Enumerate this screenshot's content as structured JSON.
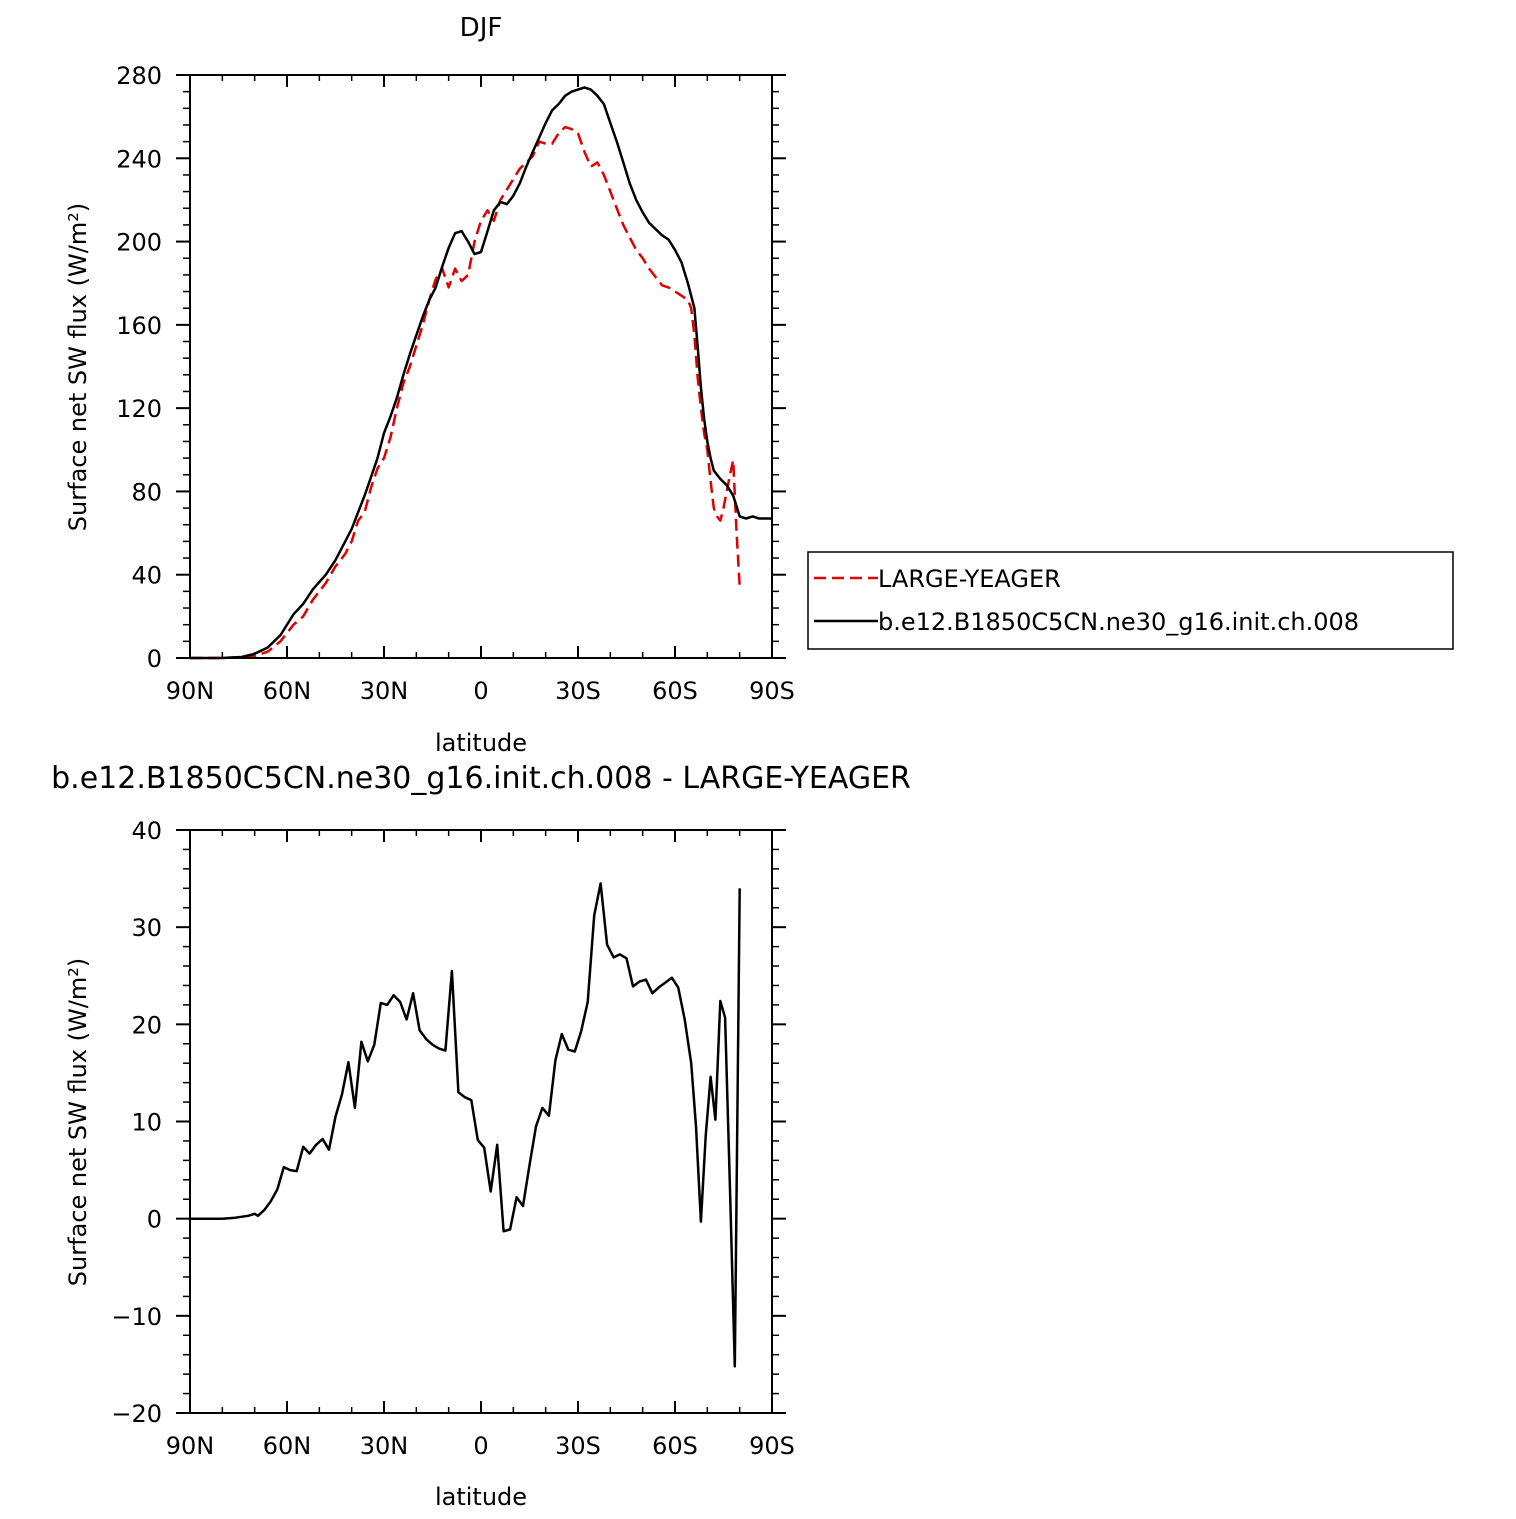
{
  "chart_data": [
    {
      "type": "line",
      "title": "DJF",
      "xlabel": "latitude",
      "ylabel": "Surface net SW flux (W/m²)",
      "xlim": [
        -90,
        90
      ],
      "ylim": [
        0,
        280
      ],
      "x_ticks": [
        -90,
        -60,
        -30,
        0,
        30,
        60,
        90
      ],
      "x_tick_labels": [
        "90N",
        "60N",
        "30N",
        "0",
        "30S",
        "60S",
        "90S"
      ],
      "y_ticks": [
        0,
        40,
        80,
        120,
        160,
        200,
        240,
        280
      ],
      "y_tick_labels": [
        "0",
        "40",
        "80",
        "120",
        "160",
        "200",
        "240",
        "280"
      ],
      "legend_position": "right",
      "series": [
        {
          "name": "LARGE-YEAGER",
          "color": "#e00000",
          "dash": "dashed",
          "points": [
            [
              -90,
              0
            ],
            [
              -80,
              0
            ],
            [
              -74,
              0.5
            ],
            [
              -70,
              1
            ],
            [
              -66,
              3
            ],
            [
              -62,
              8
            ],
            [
              -58,
              16
            ],
            [
              -55,
              20
            ],
            [
              -52,
              28
            ],
            [
              -48,
              36
            ],
            [
              -45,
              44
            ],
            [
              -42,
              50
            ],
            [
              -40,
              56
            ],
            [
              -38,
              66
            ],
            [
              -36,
              70
            ],
            [
              -34,
              82
            ],
            [
              -32,
              91
            ],
            [
              -30,
              96
            ],
            [
              -28,
              106
            ],
            [
              -26,
              120
            ],
            [
              -24,
              132
            ],
            [
              -22,
              140
            ],
            [
              -20,
              150
            ],
            [
              -18,
              160
            ],
            [
              -16,
              172
            ],
            [
              -14,
              182
            ],
            [
              -12,
              187
            ],
            [
              -10,
              178
            ],
            [
              -8,
              187
            ],
            [
              -6,
              181
            ],
            [
              -4,
              184
            ],
            [
              -2,
              200
            ],
            [
              0,
              210
            ],
            [
              2,
              215
            ],
            [
              4,
              210
            ],
            [
              6,
              220
            ],
            [
              8,
              225
            ],
            [
              10,
              230
            ],
            [
              12,
              235
            ],
            [
              14,
              238
            ],
            [
              16,
              241
            ],
            [
              18,
              248
            ],
            [
              20,
              247
            ],
            [
              22,
              247
            ],
            [
              24,
              252
            ],
            [
              26,
              255
            ],
            [
              28,
              254
            ],
            [
              30,
              252
            ],
            [
              32,
              243
            ],
            [
              34,
              236
            ],
            [
              36,
              238
            ],
            [
              38,
              232
            ],
            [
              40,
              224
            ],
            [
              42,
              216
            ],
            [
              44,
              208
            ],
            [
              46,
              202
            ],
            [
              48,
              196
            ],
            [
              50,
              192
            ],
            [
              52,
              187
            ],
            [
              54,
              183
            ],
            [
              56,
              179
            ],
            [
              58,
              178
            ],
            [
              60,
              176
            ],
            [
              62,
              174
            ],
            [
              64,
              172
            ],
            [
              65,
              168
            ],
            [
              66,
              155
            ],
            [
              67,
              135
            ],
            [
              68,
              120
            ],
            [
              69,
              108
            ],
            [
              70,
              100
            ],
            [
              71,
              85
            ],
            [
              72,
              72
            ],
            [
              73,
              68
            ],
            [
              74,
              66
            ],
            [
              75,
              72
            ],
            [
              76,
              80
            ],
            [
              77,
              88
            ],
            [
              78,
              95
            ],
            [
              79,
              62
            ],
            [
              80,
              34
            ]
          ]
        },
        {
          "name": "b.e12.B1850C5CN.ne30_g16.init.ch.008",
          "color": "#000000",
          "dash": "solid",
          "points": [
            [
              -90,
              0
            ],
            [
              -80,
              0
            ],
            [
              -74,
              0.5
            ],
            [
              -70,
              2
            ],
            [
              -66,
              5
            ],
            [
              -62,
              11
            ],
            [
              -58,
              21
            ],
            [
              -55,
              26
            ],
            [
              -52,
              33
            ],
            [
              -48,
              40
            ],
            [
              -45,
              47
            ],
            [
              -42,
              56
            ],
            [
              -40,
              62
            ],
            [
              -38,
              70
            ],
            [
              -36,
              78
            ],
            [
              -34,
              87
            ],
            [
              -32,
              96
            ],
            [
              -30,
              108
            ],
            [
              -28,
              116
            ],
            [
              -26,
              125
            ],
            [
              -24,
              136
            ],
            [
              -22,
              146
            ],
            [
              -20,
              155
            ],
            [
              -18,
              164
            ],
            [
              -16,
              172
            ],
            [
              -14,
              178
            ],
            [
              -12,
              188
            ],
            [
              -10,
              197
            ],
            [
              -8,
              204
            ],
            [
              -6,
              205
            ],
            [
              -4,
              200
            ],
            [
              -2,
              194
            ],
            [
              0,
              195
            ],
            [
              2,
              205
            ],
            [
              4,
              215
            ],
            [
              6,
              219
            ],
            [
              8,
              218
            ],
            [
              10,
              222
            ],
            [
              12,
              228
            ],
            [
              14,
              236
            ],
            [
              16,
              243
            ],
            [
              18,
              250
            ],
            [
              20,
              257
            ],
            [
              22,
              263
            ],
            [
              24,
              266
            ],
            [
              26,
              270
            ],
            [
              28,
              272
            ],
            [
              30,
              273
            ],
            [
              32,
              274
            ],
            [
              34,
              273
            ],
            [
              36,
              270
            ],
            [
              38,
              266
            ],
            [
              40,
              257
            ],
            [
              42,
              248
            ],
            [
              44,
              238
            ],
            [
              46,
              228
            ],
            [
              48,
              220
            ],
            [
              50,
              214
            ],
            [
              52,
              209
            ],
            [
              54,
              206
            ],
            [
              56,
              203
            ],
            [
              58,
              201
            ],
            [
              60,
              196
            ],
            [
              62,
              190
            ],
            [
              64,
              180
            ],
            [
              66,
              168
            ],
            [
              67,
              150
            ],
            [
              68,
              130
            ],
            [
              69,
              115
            ],
            [
              70,
              104
            ],
            [
              71,
              96
            ],
            [
              72,
              90
            ],
            [
              74,
              86
            ],
            [
              76,
              83
            ],
            [
              78,
              78
            ],
            [
              80,
              68
            ],
            [
              82,
              67
            ],
            [
              84,
              68
            ],
            [
              86,
              67
            ],
            [
              88,
              67
            ],
            [
              90,
              67
            ]
          ]
        }
      ]
    },
    {
      "type": "line",
      "title": "b.e12.B1850C5CN.ne30_g16.init.ch.008 - LARGE-YEAGER",
      "xlabel": "latitude",
      "ylabel": "Surface net SW flux (W/m²)",
      "xlim": [
        -90,
        90
      ],
      "ylim": [
        -20,
        40
      ],
      "x_ticks": [
        -90,
        -60,
        -30,
        0,
        30,
        60,
        90
      ],
      "x_tick_labels": [
        "90N",
        "60N",
        "30N",
        "0",
        "30S",
        "60S",
        "90S"
      ],
      "y_ticks": [
        -20,
        -10,
        0,
        10,
        20,
        30,
        40
      ],
      "y_tick_labels": [
        "−20",
        "−10",
        "0",
        "10",
        "20",
        "30",
        "40"
      ],
      "series": [
        {
          "color": "#000000",
          "dash": "solid",
          "points": [
            [
              -90,
              0
            ],
            [
              -80,
              0
            ],
            [
              -76,
              0.1
            ],
            [
              -72,
              0.3
            ],
            [
              -70,
              0.5
            ],
            [
              -69,
              0.3
            ],
            [
              -67,
              0.9
            ],
            [
              -65,
              1.8
            ],
            [
              -63,
              3
            ],
            [
              -61,
              5.3
            ],
            [
              -59,
              5
            ],
            [
              -57,
              4.9
            ],
            [
              -55,
              7.4
            ],
            [
              -53,
              6.7
            ],
            [
              -51,
              7.6
            ],
            [
              -49,
              8.2
            ],
            [
              -47,
              7.1
            ],
            [
              -45,
              10.5
            ],
            [
              -43,
              12.8
            ],
            [
              -41,
              16.1
            ],
            [
              -39,
              11.4
            ],
            [
              -37,
              18.2
            ],
            [
              -35,
              16.2
            ],
            [
              -33,
              17.9
            ],
            [
              -31,
              22.2
            ],
            [
              -29,
              22
            ],
            [
              -27,
              23
            ],
            [
              -25,
              22.3
            ],
            [
              -23,
              20.5
            ],
            [
              -21,
              23.2
            ],
            [
              -19,
              19.4
            ],
            [
              -17,
              18.5
            ],
            [
              -15,
              17.9
            ],
            [
              -13,
              17.5
            ],
            [
              -11,
              17.3
            ],
            [
              -9,
              25.5
            ],
            [
              -7,
              13
            ],
            [
              -5,
              12.5
            ],
            [
              -3,
              12.2
            ],
            [
              -1,
              8.1
            ],
            [
              1,
              7.3
            ],
            [
              3,
              2.8
            ],
            [
              5,
              7.6
            ],
            [
              7,
              -1.3
            ],
            [
              9,
              -1.1
            ],
            [
              11,
              2.2
            ],
            [
              13,
              1.3
            ],
            [
              15,
              5.5
            ],
            [
              17,
              9.5
            ],
            [
              19,
              11.4
            ],
            [
              21,
              10.6
            ],
            [
              23,
              16.3
            ],
            [
              25,
              19
            ],
            [
              27,
              17.4
            ],
            [
              29,
              17.2
            ],
            [
              31,
              19.3
            ],
            [
              33,
              22.3
            ],
            [
              35,
              31.2
            ],
            [
              37,
              34.5
            ],
            [
              39,
              28.2
            ],
            [
              41,
              26.9
            ],
            [
              43,
              27.2
            ],
            [
              45,
              26.8
            ],
            [
              47,
              23.9
            ],
            [
              49,
              24.4
            ],
            [
              51,
              24.6
            ],
            [
              53,
              23.2
            ],
            [
              55,
              23.8
            ],
            [
              57,
              24.3
            ],
            [
              59,
              24.8
            ],
            [
              61,
              23.8
            ],
            [
              63,
              20.5
            ],
            [
              65,
              16
            ],
            [
              66.5,
              9.5
            ],
            [
              68,
              -0.3
            ],
            [
              69.5,
              8.5
            ],
            [
              71,
              14.6
            ],
            [
              72.5,
              10.2
            ],
            [
              74,
              22.4
            ],
            [
              75.5,
              20.7
            ],
            [
              77,
              3
            ],
            [
              78.5,
              -15.2
            ],
            [
              80,
              34
            ]
          ]
        }
      ]
    }
  ]
}
